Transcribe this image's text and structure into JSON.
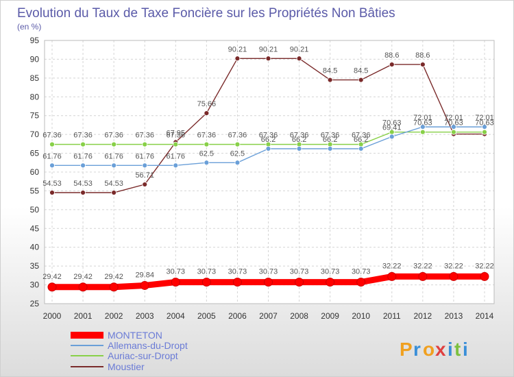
{
  "chart_data": {
    "type": "line",
    "title": "Evolution du Taux de Taxe Foncière sur les Propriétés Non Bâties",
    "unit_label": "(en %)",
    "xlabel": "",
    "ylabel": "",
    "ylim": [
      25,
      95
    ],
    "yticks": [
      "25",
      "30",
      "35",
      "40",
      "45",
      "50",
      "55",
      "60",
      "65",
      "70",
      "75",
      "80",
      "85",
      "90",
      "95"
    ],
    "categories": [
      "2000",
      "2001",
      "2002",
      "2003",
      "2004",
      "2005",
      "2006",
      "2007",
      "2008",
      "2009",
      "2010",
      "2011",
      "2012",
      "2013",
      "2014"
    ],
    "grid": true,
    "legend_position": "bottom-left",
    "series": [
      {
        "name": "MONTETON",
        "color": "#ff0000",
        "values": [
          29.42,
          29.42,
          29.42,
          29.84,
          30.73,
          30.73,
          30.73,
          30.73,
          30.73,
          30.73,
          30.73,
          32.22,
          32.22,
          32.22,
          32.22
        ],
        "labels": [
          "29.42",
          "29.42",
          "29.42",
          "29.84",
          "30.73",
          "30.73",
          "30.73",
          "30.73",
          "30.73",
          "30.73",
          "30.73",
          "32.22",
          "32.22",
          "32.22",
          "32.22"
        ]
      },
      {
        "name": "Allemans-du-Dropt",
        "color": "#6a9fd8",
        "values": [
          61.76,
          61.76,
          61.76,
          61.76,
          61.76,
          62.5,
          62.5,
          66.2,
          66.2,
          66.2,
          66.2,
          69.41,
          72.01,
          72.01,
          72.01
        ],
        "labels": [
          "61.76",
          "61.76",
          "61.76",
          "61.76",
          "61.76",
          "62.5",
          "62.5",
          "66.2",
          "66.2",
          "66.2",
          "66.2",
          "69.41",
          "72.01",
          "72.01",
          "72.01"
        ]
      },
      {
        "name": "Auriac-sur-Dropt",
        "color": "#88d048",
        "values": [
          67.36,
          67.36,
          67.36,
          67.36,
          67.36,
          67.36,
          67.36,
          67.36,
          67.36,
          67.36,
          67.36,
          70.63,
          70.63,
          70.63,
          70.63
        ],
        "labels": [
          "67.36",
          "67.36",
          "67.36",
          "67.36",
          "67.36",
          "67.36",
          "67.36",
          "67.36",
          "67.36",
          "67.36",
          "67.36",
          "70.63",
          "70.63",
          "70.63",
          "70.63"
        ]
      },
      {
        "name": "Moustier",
        "color": "#7a2a2a",
        "values": [
          54.53,
          54.53,
          54.53,
          56.71,
          67.95,
          75.66,
          90.21,
          90.21,
          90.21,
          84.5,
          84.5,
          88.6,
          88.6,
          70.1,
          70.1
        ],
        "labels": [
          "54.53",
          "54.53",
          "54.53",
          "56.71",
          "67.95",
          "75.66",
          "90.21",
          "90.21",
          "90.21",
          "84.5",
          "84.5",
          "88.6",
          "88.6",
          "",
          ""
        ]
      }
    ]
  },
  "logo": {
    "letters": [
      "P",
      "r",
      "o",
      "x",
      "i",
      "t",
      "i"
    ],
    "colors": [
      "#f0a020",
      "#3a8fd8",
      "#f0a020",
      "#e04040",
      "#3a8fd8",
      "#7cc040",
      "#3a8fd8"
    ]
  }
}
